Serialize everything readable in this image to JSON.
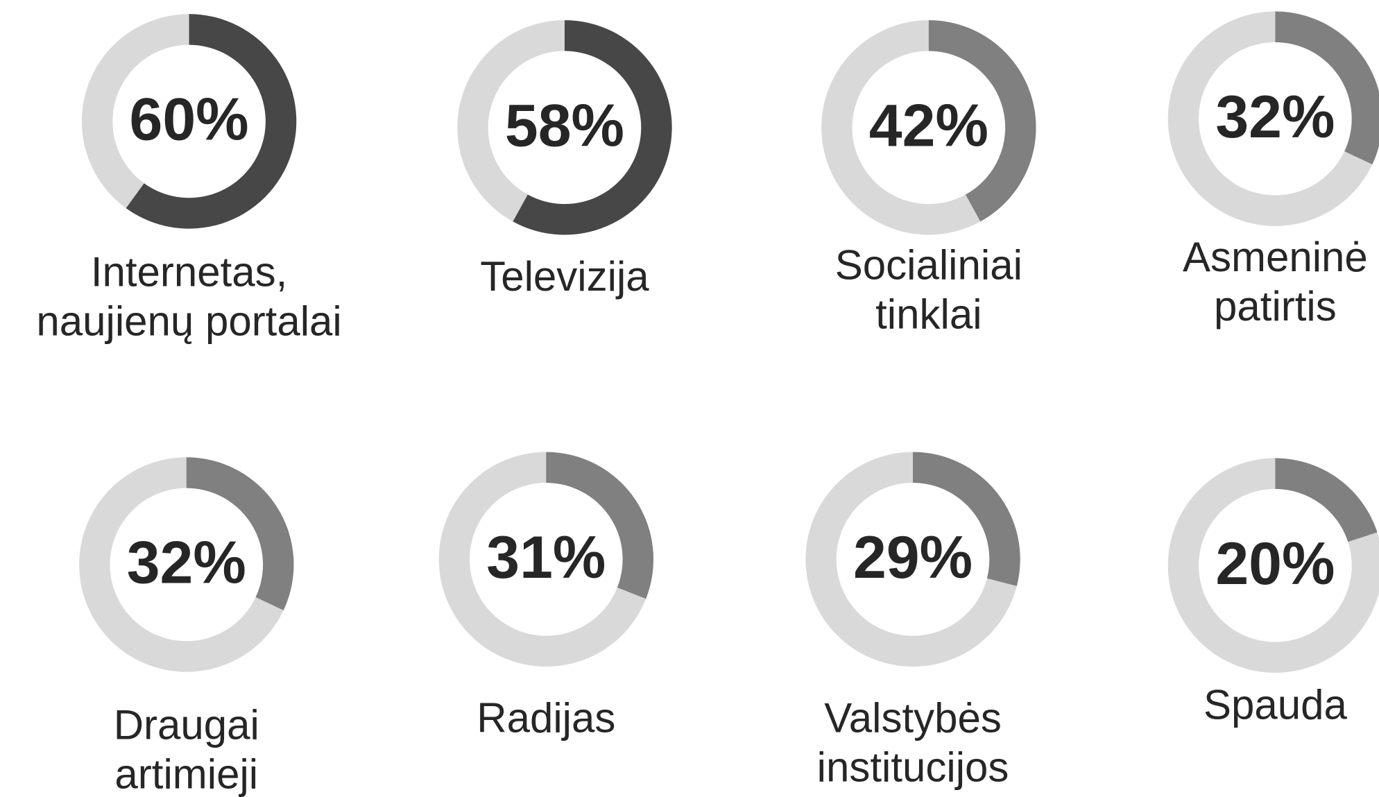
{
  "chart_data": {
    "type": "donut",
    "categories": [
      [
        "Internetas,",
        "naujienų portalai"
      ],
      [
        "Televizija"
      ],
      [
        "Socialiniai",
        "tinklai"
      ],
      [
        "Asmeninė",
        "patirtis"
      ],
      [
        "Draugai",
        "artimieji"
      ],
      [
        "Radijas"
      ],
      [
        "Valstybės",
        "institucijos"
      ],
      [
        "Spauda"
      ]
    ],
    "values": [
      60,
      58,
      42,
      32,
      32,
      31,
      29,
      20
    ],
    "value_labels": [
      "60%",
      "58%",
      "42%",
      "32%",
      "32%",
      "31%",
      "29%",
      "20%"
    ],
    "colors": [
      "#474747",
      "#474747",
      "#808080",
      "#808080",
      "#808080",
      "#808080",
      "#808080",
      "#808080"
    ],
    "track_color": "#d9d9d9",
    "ylim": [
      0,
      100
    ]
  }
}
